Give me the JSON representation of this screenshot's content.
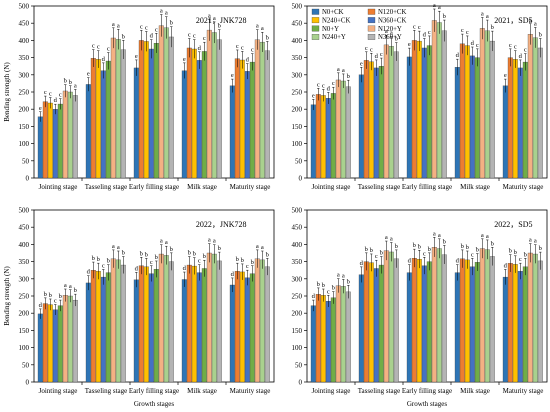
{
  "figure": {
    "xlabel": "Growth stages",
    "ylabel": "Bending strength (N)"
  },
  "legend": {
    "entries": [
      "N0+CK",
      "N120+CK",
      "N240+CK",
      "N360+CK",
      "N0+Y",
      "N120+Y",
      "N240+Y",
      "N360+Y"
    ],
    "colors": [
      "#2e75b6",
      "#ed7d31",
      "#ffc000",
      "#4472c4",
      "#70ad47",
      "#f4b183",
      "#a9d18e",
      "#b4b4b4"
    ]
  },
  "chart_data": [
    {
      "type": "bar",
      "title": "2021，JNK728",
      "categories": [
        "Jointing stage",
        "Tasseling stage",
        "Early filling stage",
        "Milk stage",
        "Maturity stage"
      ],
      "ylim": [
        0,
        500
      ],
      "yticks": [
        0,
        50,
        100,
        150,
        200,
        250,
        300,
        350,
        400,
        450,
        500
      ],
      "xlabel": "",
      "ylabel": "Bending strength (N)",
      "grid": false,
      "series": [
        {
          "name": "N0+CK",
          "values": [
            178,
            272,
            320,
            312,
            268
          ]
        },
        {
          "name": "N120+CK",
          "values": [
            222,
            348,
            400,
            378,
            347
          ]
        },
        {
          "name": "N240+CK",
          "values": [
            218,
            345,
            397,
            375,
            343
          ]
        },
        {
          "name": "N360+CK",
          "values": [
            200,
            312,
            375,
            342,
            310
          ]
        },
        {
          "name": "N0+Y",
          "values": [
            215,
            340,
            392,
            368,
            337
          ]
        },
        {
          "name": "N120+Y",
          "values": [
            253,
            407,
            443,
            430,
            402
          ]
        },
        {
          "name": "N240+Y",
          "values": [
            250,
            403,
            437,
            423,
            395
          ]
        },
        {
          "name": "N360+Y",
          "values": [
            240,
            373,
            410,
            402,
            370
          ]
        }
      ],
      "annotations": [
        [
          "e",
          "c",
          "c",
          "d",
          "c",
          "b",
          "b",
          "a"
        ],
        [
          "e",
          "c",
          "c",
          "d",
          "c",
          "a",
          "a",
          "b"
        ],
        [
          "e",
          "c",
          "c",
          "d",
          "c",
          "a",
          "a",
          "b"
        ],
        [
          "e",
          "c",
          "c",
          "d",
          "c",
          "a",
          "a",
          "b"
        ],
        [
          "e",
          "c",
          "c",
          "d",
          "c",
          "a",
          "a",
          "b"
        ]
      ]
    },
    {
      "type": "bar",
      "title": "2021，SD5",
      "categories": [
        "Jointing stage",
        "Tasseling stage",
        "Early filling stage",
        "Milk stage",
        "Maturity stage"
      ],
      "ylim": [
        0,
        500
      ],
      "yticks": [
        0,
        50,
        100,
        150,
        200,
        250,
        300,
        350,
        400,
        450,
        500
      ],
      "xlabel": "",
      "ylabel": "",
      "grid": false,
      "legend_position": "top-left",
      "series": [
        {
          "name": "N0+CK",
          "values": [
            213,
            300,
            352,
            322,
            268
          ]
        },
        {
          "name": "N120+CK",
          "values": [
            243,
            342,
            400,
            390,
            350
          ]
        },
        {
          "name": "N240+CK",
          "values": [
            240,
            338,
            398,
            385,
            345
          ]
        },
        {
          "name": "N360+CK",
          "values": [
            232,
            320,
            378,
            355,
            320
          ]
        },
        {
          "name": "N0+Y",
          "values": [
            246,
            325,
            385,
            350,
            337
          ]
        },
        {
          "name": "N120+Y",
          "values": [
            285,
            387,
            458,
            435,
            418
          ]
        },
        {
          "name": "N240+Y",
          "values": [
            282,
            383,
            452,
            428,
            408
          ]
        },
        {
          "name": "N360+Y",
          "values": [
            265,
            367,
            428,
            398,
            378
          ]
        }
      ],
      "annotations": [
        [
          "e",
          "c",
          "c",
          "d",
          "c",
          "a",
          "a",
          "b"
        ],
        [
          "e",
          "c",
          "c",
          "d",
          "c",
          "a",
          "a",
          "b"
        ],
        [
          "e",
          "c",
          "c",
          "d",
          "c",
          "a",
          "a",
          "b"
        ],
        [
          "d",
          "c",
          "c",
          "d",
          "c",
          "a",
          "a",
          "b"
        ],
        [
          "e",
          "c",
          "c",
          "d",
          "c",
          "a",
          "a",
          "b"
        ]
      ]
    },
    {
      "type": "bar",
      "title": "2022，JNK728",
      "categories": [
        "Jointing stage",
        "Tasseling stage",
        "Early filling stage",
        "Milk stage",
        "Maturity stage"
      ],
      "ylim": [
        0,
        500
      ],
      "yticks": [
        0,
        50,
        100,
        150,
        200,
        250,
        300,
        350,
        400,
        450,
        500
      ],
      "xlabel": "Growth stages",
      "ylabel": "Bending strength (N)",
      "grid": false,
      "series": [
        {
          "name": "N0+CK",
          "values": [
            198,
            288,
            297,
            298,
            282
          ]
        },
        {
          "name": "N120+CK",
          "values": [
            228,
            325,
            338,
            340,
            322
          ]
        },
        {
          "name": "N240+CK",
          "values": [
            225,
            322,
            335,
            337,
            320
          ]
        },
        {
          "name": "N360+CK",
          "values": [
            210,
            305,
            315,
            318,
            303
          ]
        },
        {
          "name": "N0+Y",
          "values": [
            222,
            318,
            328,
            330,
            315
          ]
        },
        {
          "name": "N120+Y",
          "values": [
            252,
            358,
            372,
            375,
            358
          ]
        },
        {
          "name": "N240+Y",
          "values": [
            250,
            355,
            368,
            372,
            355
          ]
        },
        {
          "name": "N360+Y",
          "values": [
            238,
            340,
            350,
            352,
            335
          ]
        }
      ],
      "annotations": [
        [
          "d",
          "b",
          "b",
          "c",
          "b",
          "a",
          "a",
          "b"
        ],
        [
          "d",
          "b",
          "b",
          "c",
          "b",
          "a",
          "a",
          "b"
        ],
        [
          "d",
          "b",
          "b",
          "c",
          "b",
          "a",
          "a",
          "b"
        ],
        [
          "d",
          "b",
          "b",
          "c",
          "b",
          "a",
          "a",
          "b"
        ],
        [
          "d",
          "b",
          "b",
          "c",
          "b",
          "a",
          "a",
          "b"
        ]
      ]
    },
    {
      "type": "bar",
      "title": "2022，SD5",
      "categories": [
        "Jointing stage",
        "Tasseling stage",
        "Early filling stage",
        "Milk stage",
        "Maturity stage"
      ],
      "ylim": [
        0,
        500
      ],
      "yticks": [
        0,
        50,
        100,
        150,
        200,
        250,
        300,
        350,
        400,
        450,
        500
      ],
      "xlabel": "Growth stages",
      "ylabel": "",
      "grid": false,
      "series": [
        {
          "name": "N0+CK",
          "values": [
            222,
            312,
            318,
            318,
            305
          ]
        },
        {
          "name": "N120+CK",
          "values": [
            255,
            350,
            360,
            358,
            345
          ]
        },
        {
          "name": "N240+CK",
          "values": [
            252,
            347,
            357,
            355,
            342
          ]
        },
        {
          "name": "N360+CK",
          "values": [
            235,
            330,
            338,
            335,
            322
          ]
        },
        {
          "name": "N0+Y",
          "values": [
            245,
            340,
            350,
            348,
            335
          ]
        },
        {
          "name": "N120+Y",
          "values": [
            280,
            382,
            392,
            388,
            375
          ]
        },
        {
          "name": "N240+Y",
          "values": [
            278,
            378,
            388,
            385,
            372
          ]
        },
        {
          "name": "N360+Y",
          "values": [
            262,
            358,
            370,
            365,
            352
          ]
        }
      ],
      "annotations": [
        [
          "d",
          "b",
          "b",
          "c",
          "b",
          "a",
          "a",
          "b"
        ],
        [
          "d",
          "b",
          "b",
          "c",
          "b",
          "a",
          "a",
          "b"
        ],
        [
          "d",
          "b",
          "b",
          "c",
          "b",
          "a",
          "a",
          "b"
        ],
        [
          "d",
          "b",
          "b",
          "c",
          "b",
          "a",
          "a",
          "b"
        ],
        [
          "d",
          "b",
          "b",
          "c",
          "b",
          "a",
          "a",
          "b"
        ]
      ]
    }
  ]
}
